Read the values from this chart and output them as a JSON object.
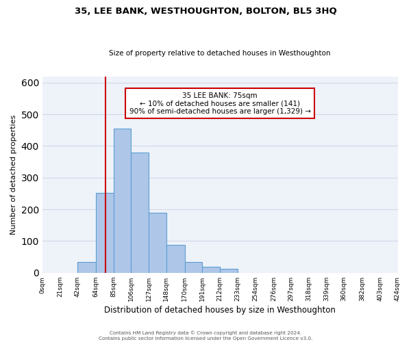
{
  "title": "35, LEE BANK, WESTHOUGHTON, BOLTON, BL5 3HQ",
  "subtitle": "Size of property relative to detached houses in Westhoughton",
  "xlabel": "Distribution of detached houses by size in Westhoughton",
  "ylabel": "Number of detached properties",
  "bar_edges": [
    0,
    21,
    42,
    64,
    85,
    106,
    127,
    148,
    170,
    191,
    212,
    233,
    254,
    276,
    297,
    318,
    339,
    360,
    382,
    403,
    424
  ],
  "bar_heights": [
    0,
    0,
    35,
    253,
    456,
    380,
    190,
    88,
    35,
    20,
    12,
    0,
    0,
    0,
    0,
    0,
    0,
    0,
    0,
    0
  ],
  "bar_color": "#aec6e8",
  "bar_edge_color": "#5a9fd4",
  "vline_x": 75,
  "vline_color": "#cc0000",
  "ylim": [
    0,
    620
  ],
  "annotation_title": "35 LEE BANK: 75sqm",
  "annotation_line1": "← 10% of detached houses are smaller (141)",
  "annotation_line2": "90% of semi-detached houses are larger (1,329) →",
  "annotation_box_color": "#ffffff",
  "annotation_box_edge": "#cc0000",
  "tick_labels": [
    "0sqm",
    "21sqm",
    "42sqm",
    "64sqm",
    "85sqm",
    "106sqm",
    "127sqm",
    "148sqm",
    "170sqm",
    "191sqm",
    "212sqm",
    "233sqm",
    "254sqm",
    "276sqm",
    "297sqm",
    "318sqm",
    "339sqm",
    "360sqm",
    "382sqm",
    "403sqm",
    "424sqm"
  ],
  "footer_line1": "Contains HM Land Registry data © Crown copyright and database right 2024.",
  "footer_line2": "Contains public sector information licensed under the Open Government Licence v3.0.",
  "grid_color": "#d0d8e8",
  "background_color": "#eef2f9"
}
